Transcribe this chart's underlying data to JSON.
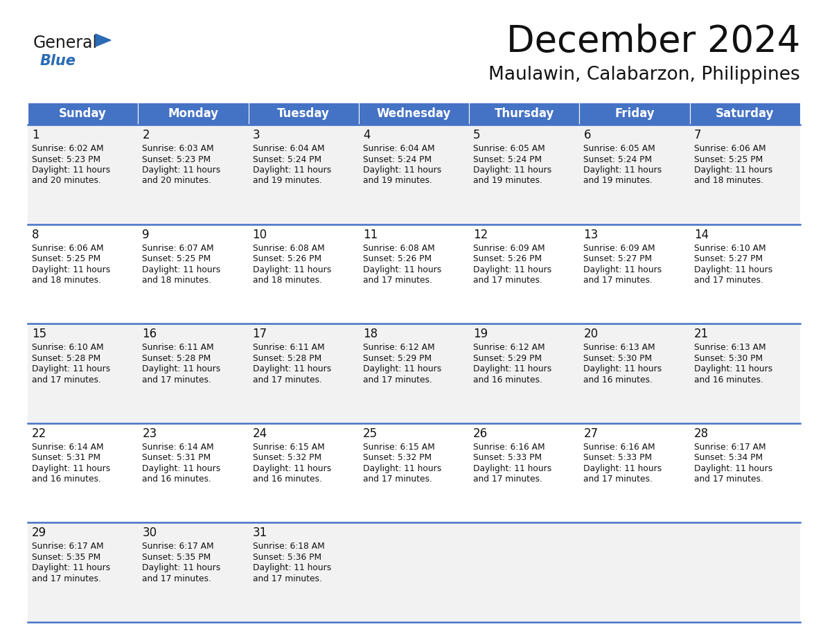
{
  "title": "December 2024",
  "subtitle": "Maulawin, Calabarzon, Philippines",
  "header_bg": "#4472C4",
  "header_text_color": "#FFFFFF",
  "header_font_size": 12,
  "day_headers": [
    "Sunday",
    "Monday",
    "Tuesday",
    "Wednesday",
    "Thursday",
    "Friday",
    "Saturday"
  ],
  "title_fontsize": 38,
  "subtitle_fontsize": 19,
  "cell_bg_odd": "#F2F2F2",
  "cell_bg_even": "#FFFFFF",
  "divider_color": "#4472C4",
  "day_number_fontsize": 12,
  "cell_text_fontsize": 8.8,
  "logo_general_color": "#1a1a1a",
  "logo_blue_color": "#2B6BB5",
  "weeks": [
    [
      {
        "day": 1,
        "sunrise": "6:02 AM",
        "sunset": "5:23 PM",
        "daylight_suffix": "20 minutes."
      },
      {
        "day": 2,
        "sunrise": "6:03 AM",
        "sunset": "5:23 PM",
        "daylight_suffix": "20 minutes."
      },
      {
        "day": 3,
        "sunrise": "6:04 AM",
        "sunset": "5:24 PM",
        "daylight_suffix": "19 minutes."
      },
      {
        "day": 4,
        "sunrise": "6:04 AM",
        "sunset": "5:24 PM",
        "daylight_suffix": "19 minutes."
      },
      {
        "day": 5,
        "sunrise": "6:05 AM",
        "sunset": "5:24 PM",
        "daylight_suffix": "19 minutes."
      },
      {
        "day": 6,
        "sunrise": "6:05 AM",
        "sunset": "5:24 PM",
        "daylight_suffix": "19 minutes."
      },
      {
        "day": 7,
        "sunrise": "6:06 AM",
        "sunset": "5:25 PM",
        "daylight_suffix": "18 minutes."
      }
    ],
    [
      {
        "day": 8,
        "sunrise": "6:06 AM",
        "sunset": "5:25 PM",
        "daylight_suffix": "18 minutes."
      },
      {
        "day": 9,
        "sunrise": "6:07 AM",
        "sunset": "5:25 PM",
        "daylight_suffix": "18 minutes."
      },
      {
        "day": 10,
        "sunrise": "6:08 AM",
        "sunset": "5:26 PM",
        "daylight_suffix": "18 minutes."
      },
      {
        "day": 11,
        "sunrise": "6:08 AM",
        "sunset": "5:26 PM",
        "daylight_suffix": "17 minutes."
      },
      {
        "day": 12,
        "sunrise": "6:09 AM",
        "sunset": "5:26 PM",
        "daylight_suffix": "17 minutes."
      },
      {
        "day": 13,
        "sunrise": "6:09 AM",
        "sunset": "5:27 PM",
        "daylight_suffix": "17 minutes."
      },
      {
        "day": 14,
        "sunrise": "6:10 AM",
        "sunset": "5:27 PM",
        "daylight_suffix": "17 minutes."
      }
    ],
    [
      {
        "day": 15,
        "sunrise": "6:10 AM",
        "sunset": "5:28 PM",
        "daylight_suffix": "17 minutes."
      },
      {
        "day": 16,
        "sunrise": "6:11 AM",
        "sunset": "5:28 PM",
        "daylight_suffix": "17 minutes."
      },
      {
        "day": 17,
        "sunrise": "6:11 AM",
        "sunset": "5:28 PM",
        "daylight_suffix": "17 minutes."
      },
      {
        "day": 18,
        "sunrise": "6:12 AM",
        "sunset": "5:29 PM",
        "daylight_suffix": "17 minutes."
      },
      {
        "day": 19,
        "sunrise": "6:12 AM",
        "sunset": "5:29 PM",
        "daylight_suffix": "16 minutes."
      },
      {
        "day": 20,
        "sunrise": "6:13 AM",
        "sunset": "5:30 PM",
        "daylight_suffix": "16 minutes."
      },
      {
        "day": 21,
        "sunrise": "6:13 AM",
        "sunset": "5:30 PM",
        "daylight_suffix": "16 minutes."
      }
    ],
    [
      {
        "day": 22,
        "sunrise": "6:14 AM",
        "sunset": "5:31 PM",
        "daylight_suffix": "16 minutes."
      },
      {
        "day": 23,
        "sunrise": "6:14 AM",
        "sunset": "5:31 PM",
        "daylight_suffix": "16 minutes."
      },
      {
        "day": 24,
        "sunrise": "6:15 AM",
        "sunset": "5:32 PM",
        "daylight_suffix": "16 minutes."
      },
      {
        "day": 25,
        "sunrise": "6:15 AM",
        "sunset": "5:32 PM",
        "daylight_suffix": "17 minutes."
      },
      {
        "day": 26,
        "sunrise": "6:16 AM",
        "sunset": "5:33 PM",
        "daylight_suffix": "17 minutes."
      },
      {
        "day": 27,
        "sunrise": "6:16 AM",
        "sunset": "5:33 PM",
        "daylight_suffix": "17 minutes."
      },
      {
        "day": 28,
        "sunrise": "6:17 AM",
        "sunset": "5:34 PM",
        "daylight_suffix": "17 minutes."
      }
    ],
    [
      {
        "day": 29,
        "sunrise": "6:17 AM",
        "sunset": "5:35 PM",
        "daylight_suffix": "17 minutes."
      },
      {
        "day": 30,
        "sunrise": "6:17 AM",
        "sunset": "5:35 PM",
        "daylight_suffix": "17 minutes."
      },
      {
        "day": 31,
        "sunrise": "6:18 AM",
        "sunset": "5:36 PM",
        "daylight_suffix": "17 minutes."
      },
      null,
      null,
      null,
      null
    ]
  ]
}
